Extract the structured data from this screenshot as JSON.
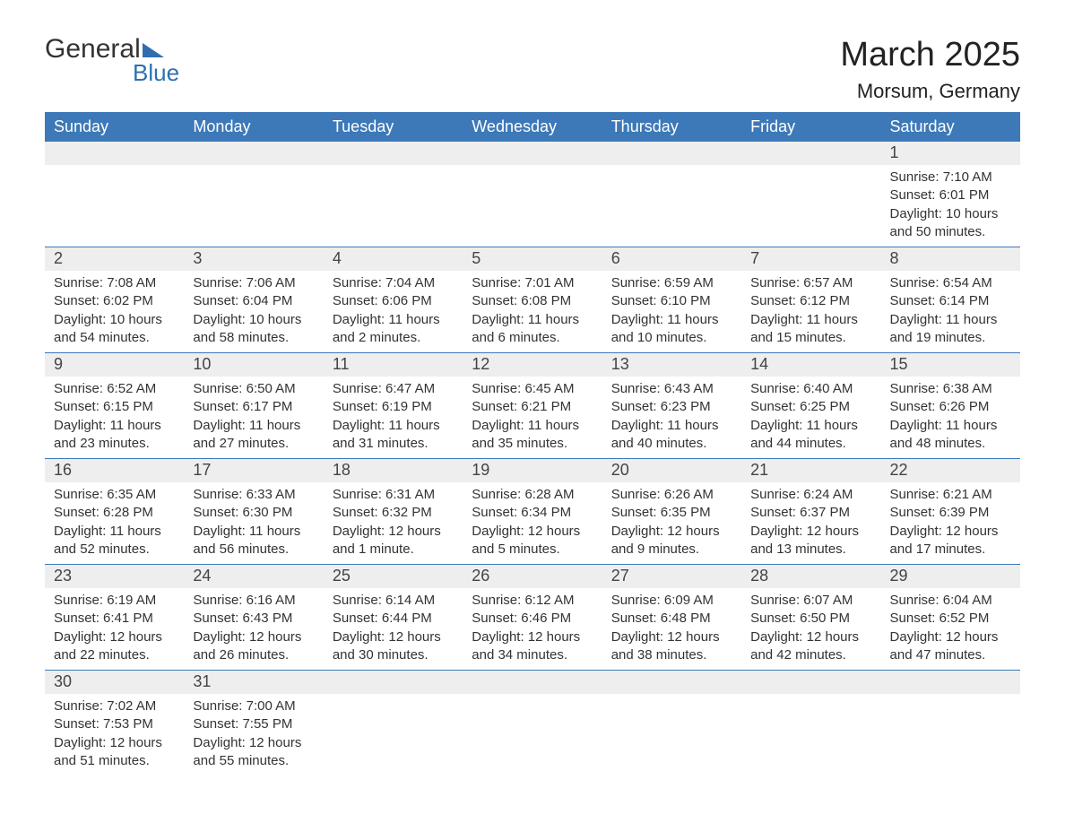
{
  "logo": {
    "top": "General",
    "bottom": "Blue"
  },
  "title": "March 2025",
  "subtitle": "Morsum, Germany",
  "colors": {
    "header_bg": "#3d79b8",
    "header_text": "#ffffff",
    "row_sep": "#3d79b8",
    "daynum_bg": "#eeeeee",
    "accent": "#2f6fb0"
  },
  "weekdays": [
    "Sunday",
    "Monday",
    "Tuesday",
    "Wednesday",
    "Thursday",
    "Friday",
    "Saturday"
  ],
  "weeks": [
    [
      null,
      null,
      null,
      null,
      null,
      null,
      {
        "n": "1",
        "sunrise": "Sunrise: 7:10 AM",
        "sunset": "Sunset: 6:01 PM",
        "daylight": "Daylight: 10 hours and 50 minutes."
      }
    ],
    [
      {
        "n": "2",
        "sunrise": "Sunrise: 7:08 AM",
        "sunset": "Sunset: 6:02 PM",
        "daylight": "Daylight: 10 hours and 54 minutes."
      },
      {
        "n": "3",
        "sunrise": "Sunrise: 7:06 AM",
        "sunset": "Sunset: 6:04 PM",
        "daylight": "Daylight: 10 hours and 58 minutes."
      },
      {
        "n": "4",
        "sunrise": "Sunrise: 7:04 AM",
        "sunset": "Sunset: 6:06 PM",
        "daylight": "Daylight: 11 hours and 2 minutes."
      },
      {
        "n": "5",
        "sunrise": "Sunrise: 7:01 AM",
        "sunset": "Sunset: 6:08 PM",
        "daylight": "Daylight: 11 hours and 6 minutes."
      },
      {
        "n": "6",
        "sunrise": "Sunrise: 6:59 AM",
        "sunset": "Sunset: 6:10 PM",
        "daylight": "Daylight: 11 hours and 10 minutes."
      },
      {
        "n": "7",
        "sunrise": "Sunrise: 6:57 AM",
        "sunset": "Sunset: 6:12 PM",
        "daylight": "Daylight: 11 hours and 15 minutes."
      },
      {
        "n": "8",
        "sunrise": "Sunrise: 6:54 AM",
        "sunset": "Sunset: 6:14 PM",
        "daylight": "Daylight: 11 hours and 19 minutes."
      }
    ],
    [
      {
        "n": "9",
        "sunrise": "Sunrise: 6:52 AM",
        "sunset": "Sunset: 6:15 PM",
        "daylight": "Daylight: 11 hours and 23 minutes."
      },
      {
        "n": "10",
        "sunrise": "Sunrise: 6:50 AM",
        "sunset": "Sunset: 6:17 PM",
        "daylight": "Daylight: 11 hours and 27 minutes."
      },
      {
        "n": "11",
        "sunrise": "Sunrise: 6:47 AM",
        "sunset": "Sunset: 6:19 PM",
        "daylight": "Daylight: 11 hours and 31 minutes."
      },
      {
        "n": "12",
        "sunrise": "Sunrise: 6:45 AM",
        "sunset": "Sunset: 6:21 PM",
        "daylight": "Daylight: 11 hours and 35 minutes."
      },
      {
        "n": "13",
        "sunrise": "Sunrise: 6:43 AM",
        "sunset": "Sunset: 6:23 PM",
        "daylight": "Daylight: 11 hours and 40 minutes."
      },
      {
        "n": "14",
        "sunrise": "Sunrise: 6:40 AM",
        "sunset": "Sunset: 6:25 PM",
        "daylight": "Daylight: 11 hours and 44 minutes."
      },
      {
        "n": "15",
        "sunrise": "Sunrise: 6:38 AM",
        "sunset": "Sunset: 6:26 PM",
        "daylight": "Daylight: 11 hours and 48 minutes."
      }
    ],
    [
      {
        "n": "16",
        "sunrise": "Sunrise: 6:35 AM",
        "sunset": "Sunset: 6:28 PM",
        "daylight": "Daylight: 11 hours and 52 minutes."
      },
      {
        "n": "17",
        "sunrise": "Sunrise: 6:33 AM",
        "sunset": "Sunset: 6:30 PM",
        "daylight": "Daylight: 11 hours and 56 minutes."
      },
      {
        "n": "18",
        "sunrise": "Sunrise: 6:31 AM",
        "sunset": "Sunset: 6:32 PM",
        "daylight": "Daylight: 12 hours and 1 minute."
      },
      {
        "n": "19",
        "sunrise": "Sunrise: 6:28 AM",
        "sunset": "Sunset: 6:34 PM",
        "daylight": "Daylight: 12 hours and 5 minutes."
      },
      {
        "n": "20",
        "sunrise": "Sunrise: 6:26 AM",
        "sunset": "Sunset: 6:35 PM",
        "daylight": "Daylight: 12 hours and 9 minutes."
      },
      {
        "n": "21",
        "sunrise": "Sunrise: 6:24 AM",
        "sunset": "Sunset: 6:37 PM",
        "daylight": "Daylight: 12 hours and 13 minutes."
      },
      {
        "n": "22",
        "sunrise": "Sunrise: 6:21 AM",
        "sunset": "Sunset: 6:39 PM",
        "daylight": "Daylight: 12 hours and 17 minutes."
      }
    ],
    [
      {
        "n": "23",
        "sunrise": "Sunrise: 6:19 AM",
        "sunset": "Sunset: 6:41 PM",
        "daylight": "Daylight: 12 hours and 22 minutes."
      },
      {
        "n": "24",
        "sunrise": "Sunrise: 6:16 AM",
        "sunset": "Sunset: 6:43 PM",
        "daylight": "Daylight: 12 hours and 26 minutes."
      },
      {
        "n": "25",
        "sunrise": "Sunrise: 6:14 AM",
        "sunset": "Sunset: 6:44 PM",
        "daylight": "Daylight: 12 hours and 30 minutes."
      },
      {
        "n": "26",
        "sunrise": "Sunrise: 6:12 AM",
        "sunset": "Sunset: 6:46 PM",
        "daylight": "Daylight: 12 hours and 34 minutes."
      },
      {
        "n": "27",
        "sunrise": "Sunrise: 6:09 AM",
        "sunset": "Sunset: 6:48 PM",
        "daylight": "Daylight: 12 hours and 38 minutes."
      },
      {
        "n": "28",
        "sunrise": "Sunrise: 6:07 AM",
        "sunset": "Sunset: 6:50 PM",
        "daylight": "Daylight: 12 hours and 42 minutes."
      },
      {
        "n": "29",
        "sunrise": "Sunrise: 6:04 AM",
        "sunset": "Sunset: 6:52 PM",
        "daylight": "Daylight: 12 hours and 47 minutes."
      }
    ],
    [
      {
        "n": "30",
        "sunrise": "Sunrise: 7:02 AM",
        "sunset": "Sunset: 7:53 PM",
        "daylight": "Daylight: 12 hours and 51 minutes."
      },
      {
        "n": "31",
        "sunrise": "Sunrise: 7:00 AM",
        "sunset": "Sunset: 7:55 PM",
        "daylight": "Daylight: 12 hours and 55 minutes."
      },
      null,
      null,
      null,
      null,
      null
    ]
  ]
}
